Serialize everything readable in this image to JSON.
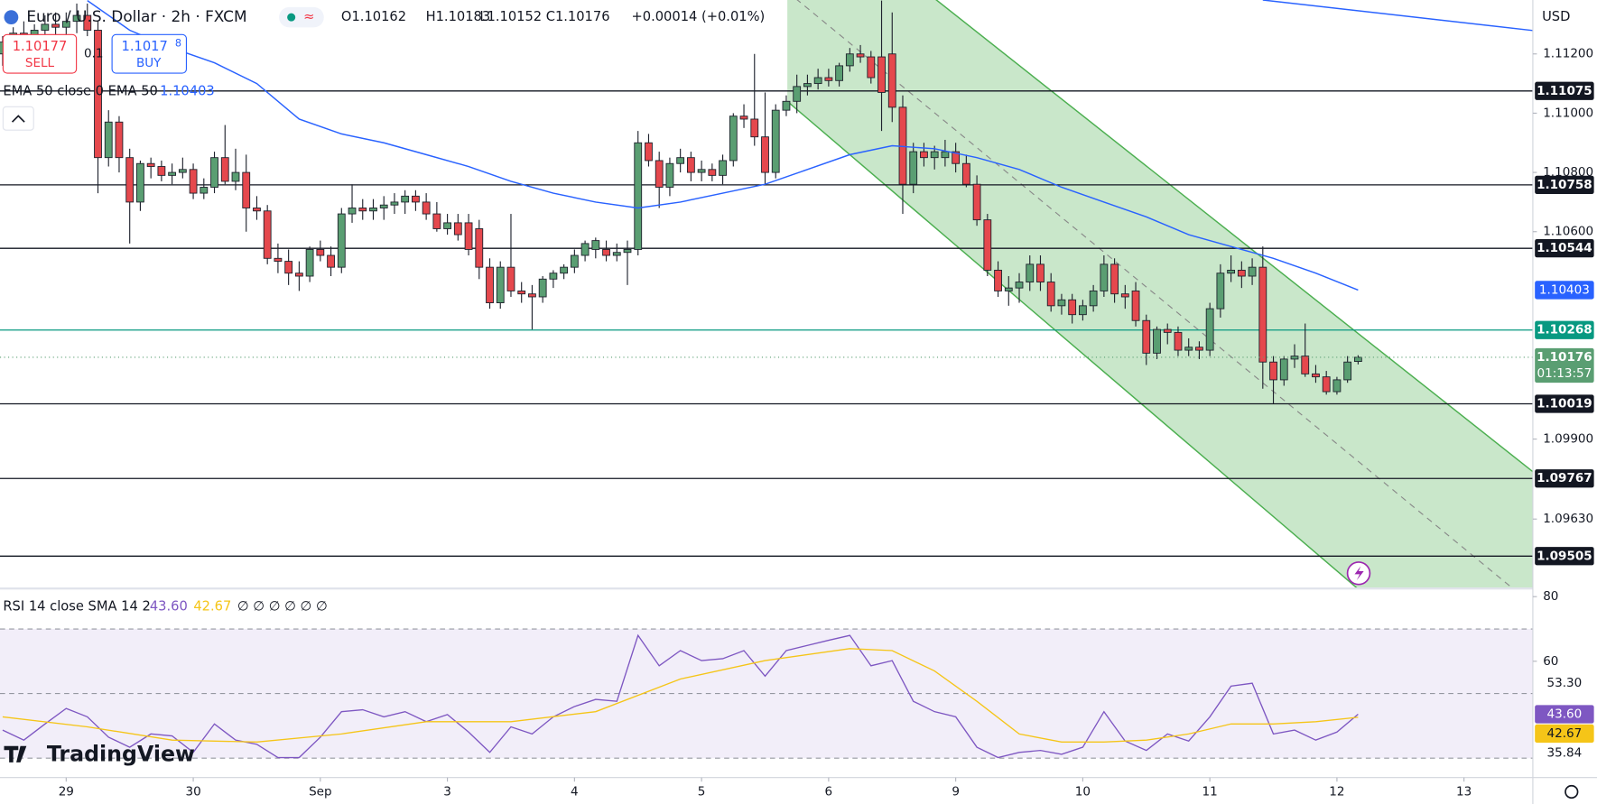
{
  "ui": {
    "sell": {
      "price": "1.10177",
      "label": "SELL"
    },
    "buy": {
      "price": "1.1017",
      "pip": "8",
      "label": "BUY"
    },
    "spread": "0.1",
    "logo": "TradingView",
    "currency": "USD"
  },
  "chart_data": {
    "type": "candlestick",
    "title": "Euro / U.S. Dollar · 2h · FXCM",
    "ohlc_legend": [
      "O1.10162",
      "H1.10183",
      "L1.10152",
      "C1.10176",
      "+0.00014 (+0.01%)"
    ],
    "up_color": "#5a9e72",
    "down_color": "#e5484d",
    "candles": [
      [
        1.112,
        1.1126,
        1.1116,
        1.1124
      ],
      [
        1.1124,
        1.1129,
        1.1121,
        1.1127
      ],
      [
        1.1127,
        1.1131,
        1.1123,
        1.1125
      ],
      [
        1.1125,
        1.113,
        1.1121,
        1.1128
      ],
      [
        1.1128,
        1.1133,
        1.1125,
        1.113
      ],
      [
        1.113,
        1.1134,
        1.1126,
        1.1129
      ],
      [
        1.1129,
        1.1134,
        1.1125,
        1.1131
      ],
      [
        1.1131,
        1.1137,
        1.1127,
        1.1133
      ],
      [
        1.1133,
        1.1137,
        1.1126,
        1.1128
      ],
      [
        1.1128,
        1.1131,
        1.1073,
        1.1085
      ],
      [
        1.1085,
        1.1101,
        1.1082,
        1.1097
      ],
      [
        1.1097,
        1.1099,
        1.108,
        1.1085
      ],
      [
        1.1085,
        1.1088,
        1.1056,
        1.107
      ],
      [
        1.107,
        1.1084,
        1.1067,
        1.1083
      ],
      [
        1.1083,
        1.1085,
        1.1078,
        1.1082
      ],
      [
        1.1082,
        1.1084,
        1.1077,
        1.1079
      ],
      [
        1.1079,
        1.1083,
        1.1076,
        1.108
      ],
      [
        1.108,
        1.1085,
        1.1078,
        1.1081
      ],
      [
        1.1081,
        1.1083,
        1.1071,
        1.1073
      ],
      [
        1.1073,
        1.1078,
        1.1071,
        1.1075
      ],
      [
        1.1075,
        1.1087,
        1.1073,
        1.1085
      ],
      [
        1.1085,
        1.1096,
        1.1076,
        1.1077
      ],
      [
        1.1077,
        1.1088,
        1.1074,
        1.108
      ],
      [
        1.108,
        1.1086,
        1.106,
        1.1068
      ],
      [
        1.1068,
        1.1072,
        1.1064,
        1.1067
      ],
      [
        1.1067,
        1.1069,
        1.1049,
        1.1051
      ],
      [
        1.1051,
        1.1056,
        1.1046,
        1.105
      ],
      [
        1.105,
        1.1054,
        1.1042,
        1.1046
      ],
      [
        1.1046,
        1.105,
        1.104,
        1.1045
      ],
      [
        1.1045,
        1.1055,
        1.1043,
        1.1054
      ],
      [
        1.1054,
        1.1057,
        1.105,
        1.1052
      ],
      [
        1.1052,
        1.1055,
        1.1045,
        1.1048
      ],
      [
        1.1048,
        1.1068,
        1.1046,
        1.1066
      ],
      [
        1.1066,
        1.1076,
        1.1063,
        1.1068
      ],
      [
        1.1068,
        1.1071,
        1.1064,
        1.1067
      ],
      [
        1.1067,
        1.1071,
        1.1064,
        1.1068
      ],
      [
        1.1068,
        1.1072,
        1.1064,
        1.1069
      ],
      [
        1.1069,
        1.1073,
        1.1066,
        1.107
      ],
      [
        1.107,
        1.1074,
        1.1066,
        1.1072
      ],
      [
        1.1072,
        1.1074,
        1.1067,
        1.107
      ],
      [
        1.107,
        1.1073,
        1.1064,
        1.1066
      ],
      [
        1.1066,
        1.107,
        1.106,
        1.1061
      ],
      [
        1.1061,
        1.1066,
        1.1059,
        1.1063
      ],
      [
        1.1063,
        1.1066,
        1.1057,
        1.1059
      ],
      [
        1.1063,
        1.1066,
        1.1052,
        1.1054
      ],
      [
        1.1061,
        1.1064,
        1.1044,
        1.1048
      ],
      [
        1.1048,
        1.1051,
        1.1034,
        1.1036
      ],
      [
        1.1036,
        1.105,
        1.1034,
        1.1048
      ],
      [
        1.1048,
        1.1066,
        1.1038,
        1.104
      ],
      [
        1.104,
        1.1043,
        1.1036,
        1.1039
      ],
      [
        1.1039,
        1.1042,
        1.1027,
        1.1038
      ],
      [
        1.1038,
        1.1045,
        1.1036,
        1.1044
      ],
      [
        1.1044,
        1.1047,
        1.1041,
        1.1046
      ],
      [
        1.1046,
        1.1049,
        1.1044,
        1.1048
      ],
      [
        1.1048,
        1.1054,
        1.1046,
        1.1052
      ],
      [
        1.1052,
        1.1057,
        1.105,
        1.1056
      ],
      [
        1.1054,
        1.1058,
        1.1051,
        1.1057
      ],
      [
        1.1054,
        1.1057,
        1.105,
        1.1052
      ],
      [
        1.1052,
        1.1056,
        1.105,
        1.1053
      ],
      [
        1.1053,
        1.1057,
        1.1042,
        1.1054
      ],
      [
        1.1054,
        1.1094,
        1.1052,
        1.109
      ],
      [
        1.109,
        1.1093,
        1.1082,
        1.1084
      ],
      [
        1.1084,
        1.1087,
        1.1068,
        1.1075
      ],
      [
        1.1075,
        1.1085,
        1.1072,
        1.1083
      ],
      [
        1.1083,
        1.1088,
        1.108,
        1.1085
      ],
      [
        1.1085,
        1.1087,
        1.1077,
        1.108
      ],
      [
        1.108,
        1.1084,
        1.1077,
        1.1081
      ],
      [
        1.1081,
        1.1083,
        1.1077,
        1.1079
      ],
      [
        1.1079,
        1.1086,
        1.1076,
        1.1084
      ],
      [
        1.1084,
        1.11,
        1.1082,
        1.1099
      ],
      [
        1.1099,
        1.1103,
        1.1095,
        1.1098
      ],
      [
        1.1098,
        1.112,
        1.1089,
        1.1092
      ],
      [
        1.1092,
        1.1107,
        1.1076,
        1.108
      ],
      [
        1.108,
        1.1103,
        1.1078,
        1.1101
      ],
      [
        1.1101,
        1.1106,
        1.1099,
        1.1104
      ],
      [
        1.1104,
        1.1113,
        1.11,
        1.1109
      ],
      [
        1.1109,
        1.1113,
        1.1106,
        1.111
      ],
      [
        1.111,
        1.1115,
        1.1108,
        1.1112
      ],
      [
        1.1112,
        1.1115,
        1.1109,
        1.1111
      ],
      [
        1.1111,
        1.1117,
        1.1109,
        1.1116
      ],
      [
        1.1116,
        1.1122,
        1.1114,
        1.112
      ],
      [
        1.112,
        1.1123,
        1.1117,
        1.1119
      ],
      [
        1.1119,
        1.1121,
        1.111,
        1.1112
      ],
      [
        1.1119,
        1.1138,
        1.1094,
        1.1107
      ],
      [
        1.112,
        1.1134,
        1.1097,
        1.1102
      ],
      [
        1.1102,
        1.1106,
        1.1066,
        1.1076
      ],
      [
        1.1076,
        1.109,
        1.1073,
        1.1087
      ],
      [
        1.1087,
        1.109,
        1.1082,
        1.1085
      ],
      [
        1.1085,
        1.1089,
        1.1081,
        1.1087
      ],
      [
        1.1085,
        1.1091,
        1.1082,
        1.1087
      ],
      [
        1.1087,
        1.109,
        1.108,
        1.1083
      ],
      [
        1.1083,
        1.1086,
        1.1075,
        1.1076
      ],
      [
        1.1076,
        1.1079,
        1.1062,
        1.1064
      ],
      [
        1.1064,
        1.1066,
        1.1045,
        1.1047
      ],
      [
        1.1047,
        1.105,
        1.1038,
        1.104
      ],
      [
        1.104,
        1.1045,
        1.1035,
        1.1041
      ],
      [
        1.1041,
        1.1046,
        1.1036,
        1.1043
      ],
      [
        1.1043,
        1.1052,
        1.104,
        1.1049
      ],
      [
        1.1049,
        1.1052,
        1.104,
        1.1043
      ],
      [
        1.1043,
        1.1046,
        1.1033,
        1.1035
      ],
      [
        1.1035,
        1.1039,
        1.1032,
        1.1037
      ],
      [
        1.1037,
        1.1039,
        1.1029,
        1.1032
      ],
      [
        1.1032,
        1.1037,
        1.103,
        1.1035
      ],
      [
        1.1035,
        1.1042,
        1.1033,
        1.104
      ],
      [
        1.104,
        1.1052,
        1.1038,
        1.1049
      ],
      [
        1.1049,
        1.1051,
        1.1036,
        1.1039
      ],
      [
        1.1039,
        1.1042,
        1.1034,
        1.1038
      ],
      [
        1.104,
        1.1043,
        1.1028,
        1.103
      ],
      [
        1.103,
        1.1032,
        1.1015,
        1.1019
      ],
      [
        1.1019,
        1.1028,
        1.1017,
        1.1027
      ],
      [
        1.1027,
        1.1029,
        1.1022,
        1.1026
      ],
      [
        1.1026,
        1.1028,
        1.1018,
        1.102
      ],
      [
        1.102,
        1.1024,
        1.1018,
        1.1021
      ],
      [
        1.1021,
        1.1023,
        1.1017,
        1.102
      ],
      [
        1.102,
        1.1036,
        1.1018,
        1.1034
      ],
      [
        1.1034,
        1.1049,
        1.1031,
        1.1046
      ],
      [
        1.1046,
        1.1052,
        1.1043,
        1.1047
      ],
      [
        1.1047,
        1.105,
        1.1041,
        1.1045
      ],
      [
        1.1045,
        1.1051,
        1.1042,
        1.1048
      ],
      [
        1.1048,
        1.1055,
        1.1007,
        1.1016
      ],
      [
        1.1016,
        1.1018,
        1.1002,
        1.101
      ],
      [
        1.101,
        1.1018,
        1.1008,
        1.1017
      ],
      [
        1.1017,
        1.1022,
        1.1014,
        1.1018
      ],
      [
        1.1018,
        1.1029,
        1.1011,
        1.1012
      ],
      [
        1.1012,
        1.1015,
        1.1009,
        1.1011
      ],
      [
        1.1011,
        1.1013,
        1.1005,
        1.1006
      ],
      [
        1.1006,
        1.1011,
        1.1005,
        1.101
      ],
      [
        1.101,
        1.1018,
        1.1009,
        1.1016
      ],
      [
        1.10162,
        1.10183,
        1.10152,
        1.10176
      ]
    ],
    "xlim": [
      -0.25,
      144.5
    ],
    "xticks": [
      {
        "value": 6,
        "label": "29"
      },
      {
        "value": 18,
        "label": "30"
      },
      {
        "value": 30,
        "label": "Sep"
      },
      {
        "value": 42,
        "label": "3"
      },
      {
        "value": 54,
        "label": "4"
      },
      {
        "value": 66,
        "label": "5"
      },
      {
        "value": 78,
        "label": "6"
      },
      {
        "value": 90,
        "label": "9"
      },
      {
        "value": 102,
        "label": "10"
      },
      {
        "value": 114,
        "label": "11"
      },
      {
        "value": 126,
        "label": "12"
      },
      {
        "value": 138,
        "label": "13"
      }
    ],
    "ylim": [
      1.09399,
      1.11382
    ],
    "yticks": [
      {
        "value": 1.112,
        "label": "1.11200"
      },
      {
        "value": 1.11,
        "label": "1.11000"
      },
      {
        "value": 1.108,
        "label": "1.10800"
      },
      {
        "value": 1.106,
        "label": "1.10600"
      },
      {
        "value": 1.099,
        "label": "1.09900"
      },
      {
        "value": 1.0963,
        "label": "1.09630"
      }
    ],
    "levels": [
      {
        "value": 1.11075,
        "color": "#131722"
      },
      {
        "value": 1.10758,
        "color": "#131722"
      },
      {
        "value": 1.10544,
        "color": "#131722"
      },
      {
        "value": 1.10268,
        "color": "#089981"
      },
      {
        "value": 1.10019,
        "color": "#131722"
      },
      {
        "value": 1.09767,
        "color": "#131722"
      },
      {
        "value": 1.09505,
        "color": "#131722"
      }
    ],
    "ema": {
      "name": "EMA 50 close 0 EMA 50",
      "color": "#2962ff",
      "x": [
        8,
        12,
        16,
        20,
        24,
        28,
        32,
        36,
        40,
        44,
        48,
        52,
        56,
        60,
        64,
        68,
        72,
        76,
        80,
        84,
        88,
        92,
        96,
        100,
        104,
        108,
        112,
        116,
        120,
        124,
        128
      ],
      "values": [
        1.1138,
        1.1128,
        1.1122,
        1.1117,
        1.111,
        1.1098,
        1.1093,
        1.109,
        1.1086,
        1.1082,
        1.1077,
        1.1073,
        1.107,
        1.1068,
        1.107,
        1.1073,
        1.1076,
        1.1081,
        1.1086,
        1.1089,
        1.1088,
        1.1085,
        1.1081,
        1.1075,
        1.107,
        1.1065,
        1.1059,
        1.1055,
        1.1051,
        1.1046,
        1.10403
      ]
    },
    "long_line": {
      "color": "#2962ff",
      "x": [
        119,
        144.5
      ],
      "values": [
        1.11382,
        1.11279
      ]
    },
    "channel": {
      "color": "#4caf50",
      "x": [
        74.1,
        144.5
      ],
      "upper": [
        1.1178,
        1.0979
      ],
      "middle": [
        1.1141,
        1.0934
      ],
      "lower": [
        1.1104,
        1.0889
      ]
    },
    "countdown": "01:13:57",
    "rsi": {
      "title": "RSI 14 close SMA 14 2",
      "extra": "∅ ∅ ∅ ∅ ∅ ∅",
      "ylim": [
        24,
        82.2
      ],
      "yticks": [
        80,
        60
      ],
      "band": [
        30,
        70
      ],
      "mid": 50,
      "series": [
        {
          "color": "#7e57c2",
          "last_label": "43.60",
          "x": [
            0,
            2,
            4,
            6,
            8,
            10,
            12,
            14,
            16,
            18,
            20,
            22,
            24,
            26,
            28,
            30,
            32,
            34,
            36,
            38,
            40,
            42,
            44,
            46,
            48,
            50,
            52,
            54,
            56,
            58,
            60,
            62,
            64,
            66,
            68,
            70,
            72,
            74,
            76,
            78,
            80,
            82,
            84,
            86,
            88,
            90,
            92,
            94,
            96,
            98,
            100,
            102,
            104,
            106,
            108,
            110,
            112,
            114,
            116,
            118,
            120,
            122,
            124,
            126,
            128
          ],
          "values": [
            38.7,
            35.6,
            40.6,
            45.4,
            42.8,
            36.5,
            33.4,
            37.5,
            36.9,
            31.8,
            40.6,
            35.6,
            34.3,
            30.2,
            30.2,
            36.5,
            44.4,
            45.0,
            42.8,
            44.4,
            41.3,
            43.5,
            38.1,
            31.8,
            39.7,
            37.5,
            42.8,
            46.0,
            48.2,
            47.6,
            68.0,
            58.6,
            63.3,
            60.2,
            60.8,
            63.3,
            55.4,
            63.3,
            64.9,
            66.5,
            68.0,
            58.6,
            60.2,
            47.6,
            44.4,
            42.8,
            33.4,
            30.2,
            31.8,
            32.4,
            31.2,
            33.4,
            44.4,
            35.3,
            32.4,
            37.5,
            35.3,
            42.8,
            52.3,
            53.2,
            37.5,
            38.7,
            35.6,
            38.1,
            43.6
          ]
        },
        {
          "color": "#f5c518",
          "x": [
            0,
            8,
            16,
            24,
            32,
            40,
            48,
            56,
            64,
            72,
            80,
            84,
            88,
            92,
            96,
            100,
            104,
            108,
            112,
            116,
            120,
            124,
            128
          ],
          "values": [
            42.8,
            39.7,
            35.6,
            35.0,
            37.5,
            41.3,
            41.3,
            44.4,
            54.5,
            60.2,
            63.9,
            63.3,
            57.0,
            47.6,
            37.5,
            35.0,
            35.0,
            35.6,
            37.5,
            40.6,
            40.6,
            41.3,
            42.67
          ]
        }
      ],
      "marks": [
        {
          "value": 53.3,
          "label": "53.30"
        },
        {
          "value": 35.84,
          "label": "35.84"
        }
      ]
    }
  }
}
